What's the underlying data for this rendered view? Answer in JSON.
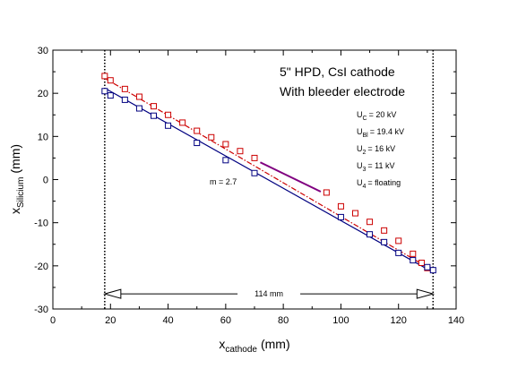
{
  "chart_data": {
    "type": "scatter",
    "title": "",
    "xlabel": {
      "base": "x",
      "sub": "cathode",
      "unit": "(mm)"
    },
    "ylabel": {
      "base": "x",
      "sub": "Silicium",
      "unit": "(mm)"
    },
    "xlim": [
      0,
      140
    ],
    "ylim": [
      -30,
      30
    ],
    "x_ticks": [
      0,
      20,
      40,
      60,
      80,
      100,
      120,
      140
    ],
    "y_ticks": [
      -30,
      -20,
      -10,
      0,
      10,
      20,
      30
    ],
    "x_tick_labels": [
      "0",
      "20",
      "40",
      "60",
      "80",
      "100",
      "120",
      "140"
    ],
    "y_tick_labels": [
      "-30",
      "-20",
      "-10",
      "0",
      "10",
      "20",
      "30"
    ],
    "grid": false,
    "series": [
      {
        "marker": "square",
        "color": "#cc0000",
        "points": [
          [
            18,
            24.0
          ],
          [
            20,
            23.0
          ],
          [
            25,
            21.0
          ],
          [
            30,
            19.2
          ],
          [
            35,
            17.0
          ],
          [
            40,
            15.0
          ],
          [
            45,
            13.2
          ],
          [
            50,
            11.3
          ],
          [
            55,
            9.8
          ],
          [
            60,
            8.2
          ],
          [
            65,
            6.6
          ],
          [
            70,
            5.0
          ],
          [
            95,
            -3.0
          ],
          [
            100,
            -6.2
          ],
          [
            105,
            -7.8
          ],
          [
            110,
            -9.8
          ],
          [
            115,
            -11.8
          ],
          [
            120,
            -14.2
          ],
          [
            125,
            -17.2
          ],
          [
            128,
            -19.3
          ],
          [
            130,
            -20.5
          ]
        ],
        "fit_line": {
          "style": "dash-dot",
          "from": [
            18,
            23.5
          ],
          "to": [
            130,
            -20.3
          ]
        }
      },
      {
        "marker": "square",
        "color": "#000080",
        "points": [
          [
            18,
            20.5
          ],
          [
            20,
            19.5
          ],
          [
            25,
            18.5
          ],
          [
            30,
            16.5
          ],
          [
            35,
            14.8
          ],
          [
            40,
            12.5
          ],
          [
            50,
            8.5
          ],
          [
            60,
            4.5
          ],
          [
            70,
            1.5
          ],
          [
            100,
            -8.7
          ],
          [
            110,
            -12.7
          ],
          [
            115,
            -14.5
          ],
          [
            120,
            -17.0
          ],
          [
            125,
            -18.7
          ],
          [
            130,
            -20.3
          ],
          [
            132,
            -21.0
          ]
        ],
        "fit_line": {
          "style": "solid",
          "from": [
            18,
            21.2
          ],
          "to": [
            132,
            -21.5
          ]
        }
      }
    ],
    "slope_segment": {
      "color": "#800080",
      "from": [
        72,
        4.0
      ],
      "to": [
        93,
        -2.8
      ]
    },
    "vertical_markers": [
      18,
      132
    ],
    "span_arrow": {
      "from": 18,
      "to": 132,
      "y": -26.5,
      "label": "114 mm"
    },
    "annotations": {
      "title_lines": [
        "5\" HPD, CsI cathode",
        "With bleeder electrode"
      ],
      "slope_label": "m = 2.7",
      "voltages": [
        {
          "base": "U",
          "sub": "C",
          "value": "= 20 kV"
        },
        {
          "base": "U",
          "sub": "Bl",
          "value": "= 19.4 kV"
        },
        {
          "base": "U",
          "sub": "2",
          "value": "= 16 kV"
        },
        {
          "base": "U",
          "sub": "3",
          "value": "= 11 kV"
        },
        {
          "base": "U",
          "sub": "4",
          "value": "= floating"
        }
      ]
    }
  }
}
